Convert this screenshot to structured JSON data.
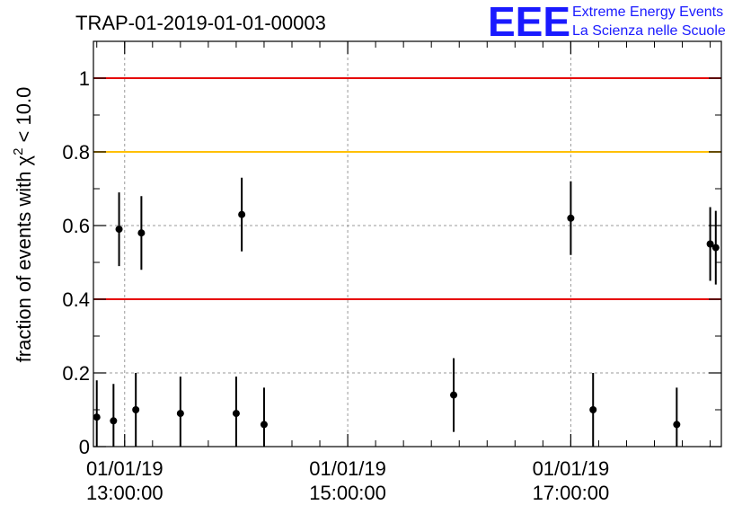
{
  "chart_data": {
    "type": "scatter",
    "title": "TRAP-01-2019-01-01-00003",
    "ylabel_prefix": "fraction of events with χ",
    "ylabel_sup": "2",
    "ylabel_suffix": " < 10.0",
    "xlabel": "",
    "ylim": [
      0,
      1.1
    ],
    "yticks": [
      "0",
      "0.2",
      "0.4",
      "0.6",
      "0.8",
      "1"
    ],
    "xticks": [
      {
        "date": "01/01/19",
        "time": "13:00:00",
        "hour": 13.0
      },
      {
        "date": "01/01/19",
        "time": "15:00:00",
        "hour": 15.0
      },
      {
        "date": "01/01/19",
        "time": "17:00:00",
        "hour": 17.0
      }
    ],
    "xlim_hours": [
      12.72,
      18.35
    ],
    "grid": true,
    "reference_lines": [
      {
        "value": 1.0,
        "color": "#e60000"
      },
      {
        "value": 0.8,
        "color": "#ffc000"
      },
      {
        "value": 0.4,
        "color": "#e60000"
      }
    ],
    "marker_color": "#000000",
    "error_bar_color": "#000000",
    "series": [
      {
        "values": [
          {
            "x": 12.75,
            "y": 0.08,
            "err": 0.1
          },
          {
            "x": 12.9,
            "y": 0.07,
            "err": 0.1
          },
          {
            "x": 12.95,
            "y": 0.59,
            "err": 0.1
          },
          {
            "x": 13.1,
            "y": 0.1,
            "err": 0.1
          },
          {
            "x": 13.15,
            "y": 0.58,
            "err": 0.1
          },
          {
            "x": 13.5,
            "y": 0.09,
            "err": 0.1
          },
          {
            "x": 14.05,
            "y": 0.63,
            "err": 0.1
          },
          {
            "x": 14.0,
            "y": 0.09,
            "err": 0.1
          },
          {
            "x": 14.25,
            "y": 0.06,
            "err": 0.1
          },
          {
            "x": 15.95,
            "y": 0.14,
            "err": 0.1
          },
          {
            "x": 17.0,
            "y": 0.62,
            "err": 0.1
          },
          {
            "x": 17.2,
            "y": 0.1,
            "err": 0.1
          },
          {
            "x": 17.95,
            "y": 0.06,
            "err": 0.1
          },
          {
            "x": 18.25,
            "y": 0.55,
            "err": 0.1
          },
          {
            "x": 18.3,
            "y": 0.54,
            "err": 0.1
          }
        ]
      }
    ]
  },
  "logo": {
    "mark": "EEE",
    "line1": "Extreme Energy Events",
    "line2": "La Scienza nelle Scuole"
  }
}
